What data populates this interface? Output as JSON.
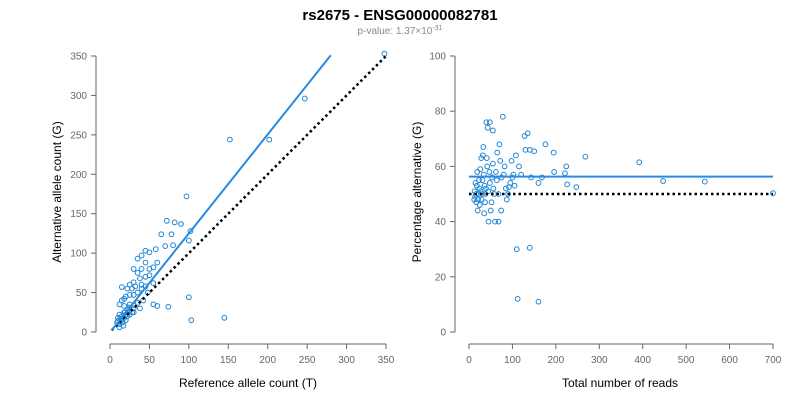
{
  "figure": {
    "title": "rs2675 - ENSG00000082781",
    "subtitle_prefix": "p-value: 1.37×10",
    "subtitle_exp": "-31"
  },
  "colors": {
    "points": "#1f86d6",
    "fit_line": "#2a8ae0",
    "reference_line": "#000000",
    "axis": "#666666"
  },
  "chart_data": [
    {
      "type": "scatter",
      "id": "allele-counts",
      "xlabel": "Reference allele count (T)",
      "ylabel": "Alternative allele count (G)",
      "xlim": [
        0,
        350
      ],
      "ylim": [
        0,
        350
      ],
      "xticks": [
        0,
        50,
        100,
        150,
        200,
        250,
        300,
        350
      ],
      "yticks": [
        0,
        50,
        100,
        150,
        200,
        250,
        300,
        350
      ],
      "fit_line": [
        [
          2,
          2
        ],
        [
          280,
          351
        ]
      ],
      "reference_line": [
        [
          2,
          2
        ],
        [
          350,
          350
        ]
      ],
      "points": [
        [
          348,
          353
        ],
        [
          247,
          296
        ],
        [
          202,
          244
        ],
        [
          152,
          244
        ],
        [
          97,
          172
        ],
        [
          72,
          141
        ],
        [
          82,
          139
        ],
        [
          90,
          137
        ],
        [
          78,
          124
        ],
        [
          102,
          128
        ],
        [
          100,
          116
        ],
        [
          80,
          110
        ],
        [
          65,
          124
        ],
        [
          70,
          109
        ],
        [
          58,
          105
        ],
        [
          45,
          103
        ],
        [
          50,
          101
        ],
        [
          40,
          97
        ],
        [
          35,
          93
        ],
        [
          45,
          88
        ],
        [
          60,
          88
        ],
        [
          55,
          82
        ],
        [
          40,
          80
        ],
        [
          30,
          80
        ],
        [
          50,
          72
        ],
        [
          45,
          70
        ],
        [
          35,
          75
        ],
        [
          38,
          68
        ],
        [
          30,
          63
        ],
        [
          25,
          60
        ],
        [
          32,
          58
        ],
        [
          28,
          55
        ],
        [
          22,
          55
        ],
        [
          15,
          57
        ],
        [
          40,
          55
        ],
        [
          45,
          58
        ],
        [
          55,
          62
        ],
        [
          48,
          50
        ],
        [
          35,
          50
        ],
        [
          30,
          47
        ],
        [
          25,
          47
        ],
        [
          20,
          45
        ],
        [
          18,
          42
        ],
        [
          15,
          40
        ],
        [
          12,
          35
        ],
        [
          18,
          33
        ],
        [
          25,
          35
        ],
        [
          30,
          30
        ],
        [
          35,
          37
        ],
        [
          42,
          40
        ],
        [
          55,
          35
        ],
        [
          60,
          33
        ],
        [
          38,
          30
        ],
        [
          30,
          25
        ],
        [
          25,
          27
        ],
        [
          22,
          28
        ],
        [
          20,
          22
        ],
        [
          18,
          25
        ],
        [
          15,
          20
        ],
        [
          12,
          22
        ],
        [
          10,
          18
        ],
        [
          14,
          15
        ],
        [
          16,
          12
        ],
        [
          18,
          18
        ],
        [
          20,
          15
        ],
        [
          22,
          20
        ],
        [
          25,
          22
        ],
        [
          28,
          25
        ],
        [
          12,
          10
        ],
        [
          10,
          14
        ],
        [
          17,
          8
        ],
        [
          12,
          6
        ],
        [
          9,
          12
        ],
        [
          13,
          17
        ],
        [
          19,
          25
        ],
        [
          24,
          31
        ],
        [
          30,
          34
        ],
        [
          100,
          44
        ],
        [
          74,
          32
        ],
        [
          103,
          15
        ],
        [
          145,
          18
        ],
        [
          40,
          60
        ],
        [
          50,
          80
        ]
      ]
    },
    {
      "type": "scatter",
      "id": "percentage-alternative",
      "xlabel": "Total number of reads",
      "ylabel": "Percentage alternative (G)",
      "xlim": [
        0,
        700
      ],
      "ylim": [
        0,
        100
      ],
      "xticks": [
        0,
        100,
        200,
        300,
        400,
        500,
        600,
        700
      ],
      "yticks": [
        0,
        20,
        40,
        60,
        80,
        100
      ],
      "fit_line": [
        [
          0,
          56.3
        ],
        [
          700,
          56.3
        ]
      ],
      "reference_line": [
        [
          0,
          50
        ],
        [
          700,
          50
        ]
      ],
      "points": [
        [
          700,
          50.3
        ],
        [
          543,
          54.5
        ],
        [
          392,
          61.5
        ],
        [
          447,
          54.7
        ],
        [
          268,
          63.5
        ],
        [
          247,
          52.5
        ],
        [
          224,
          60
        ],
        [
          226,
          53.5
        ],
        [
          221,
          57.5
        ],
        [
          196,
          58
        ],
        [
          195,
          65
        ],
        [
          176,
          68
        ],
        [
          168,
          56
        ],
        [
          160,
          11
        ],
        [
          160,
          54
        ],
        [
          150,
          65.5
        ],
        [
          143,
          56
        ],
        [
          140,
          66
        ],
        [
          140,
          30.5
        ],
        [
          135,
          72
        ],
        [
          130,
          66
        ],
        [
          128,
          71
        ],
        [
          120,
          57
        ],
        [
          115,
          60
        ],
        [
          112,
          12
        ],
        [
          110,
          30
        ],
        [
          108,
          64
        ],
        [
          105,
          53
        ],
        [
          102,
          57
        ],
        [
          100,
          56
        ],
        [
          98,
          62
        ],
        [
          95,
          54
        ],
        [
          92,
          52.5
        ],
        [
          90,
          50
        ],
        [
          87,
          48
        ],
        [
          85,
          52
        ],
        [
          82,
          60
        ],
        [
          80,
          57
        ],
        [
          78,
          78
        ],
        [
          75,
          56
        ],
        [
          74,
          44
        ],
        [
          72,
          62
        ],
        [
          70,
          68
        ],
        [
          68,
          50
        ],
        [
          65,
          65
        ],
        [
          64,
          55
        ],
        [
          62,
          58
        ],
        [
          60,
          40
        ],
        [
          58,
          50
        ],
        [
          56,
          52
        ],
        [
          55,
          61
        ],
        [
          53,
          56
        ],
        [
          52,
          47
        ],
        [
          50,
          44
        ],
        [
          48,
          54
        ],
        [
          47,
          58
        ],
        [
          45,
          40
        ],
        [
          44,
          51
        ],
        [
          43,
          74
        ],
        [
          42,
          60
        ],
        [
          41,
          63
        ],
        [
          40,
          76
        ],
        [
          39,
          52
        ],
        [
          38,
          50
        ],
        [
          37,
          47
        ],
        [
          36,
          53
        ],
        [
          35,
          43
        ],
        [
          34,
          57
        ],
        [
          33,
          67
        ],
        [
          32,
          64
        ],
        [
          31,
          55
        ],
        [
          30,
          50
        ],
        [
          29,
          48
        ],
        [
          28,
          63
        ],
        [
          27,
          51
        ],
        [
          26,
          59
        ],
        [
          25,
          46
        ],
        [
          24,
          52
        ],
        [
          23,
          55
        ],
        [
          22,
          50
        ],
        [
          21,
          48
        ],
        [
          20,
          44
        ],
        [
          19,
          58
        ],
        [
          18,
          53
        ],
        [
          17,
          47
        ],
        [
          16,
          50
        ],
        [
          15,
          54
        ],
        [
          14,
          49
        ],
        [
          13,
          51
        ],
        [
          12,
          48
        ],
        [
          48,
          76
        ],
        [
          55,
          73
        ],
        [
          68,
          40
        ]
      ]
    }
  ]
}
